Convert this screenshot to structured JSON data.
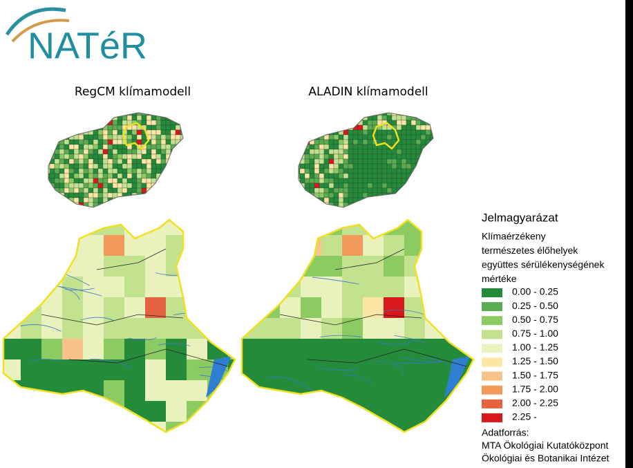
{
  "logo": "NATéR",
  "maps": [
    {
      "title": "RegCM klímamodell"
    },
    {
      "title": "ALADIN klímamodell"
    }
  ],
  "legend": {
    "title": "Jelmagyarázat",
    "subtitle": [
      "Klímaérzékeny",
      "természetes élőhelyek",
      "együttes sérülékenységének",
      "mértéke"
    ],
    "items": [
      {
        "label": "0.00 - 0.25",
        "color": "#238b3a"
      },
      {
        "label": "0.25 - 0.50",
        "color": "#5aac50"
      },
      {
        "label": "0.50 - 0.75",
        "color": "#8ccb62"
      },
      {
        "label": "0.75 - 1.00",
        "color": "#c3e290"
      },
      {
        "label": "1.00 - 1.25",
        "color": "#e9f2bd"
      },
      {
        "label": "1.25 - 1.50",
        "color": "#fbe6a6"
      },
      {
        "label": "1.50 - 1.75",
        "color": "#f8c38a"
      },
      {
        "label": "1.75 - 2.00",
        "color": "#f29a5a"
      },
      {
        "label": "2.00 - 2.25",
        "color": "#e4623f"
      },
      {
        "label": "2.25 -",
        "color": "#d7191c"
      }
    ]
  },
  "source": [
    "Adatforrás:",
    "MTA Ökológiai Kutatóközpont",
    "Ökológiai és Botanikai Intézet"
  ]
}
